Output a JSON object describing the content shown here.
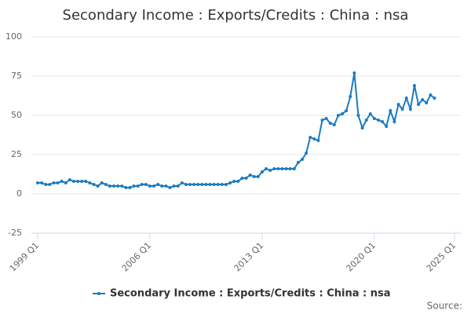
{
  "chart_data": {
    "type": "line",
    "title": "Secondary Income : Exports/Credits : China : nsa",
    "source": "Source:",
    "categories": [
      "1999 Q1",
      null,
      null,
      null,
      null,
      null,
      null,
      null,
      null,
      null,
      null,
      null,
      null,
      null,
      null,
      null,
      null,
      null,
      null,
      null,
      null,
      null,
      null,
      null,
      null,
      null,
      null,
      null,
      "2006 Q1",
      null,
      null,
      null,
      null,
      null,
      null,
      null,
      null,
      null,
      null,
      null,
      null,
      null,
      null,
      null,
      null,
      null,
      null,
      null,
      null,
      null,
      null,
      null,
      null,
      null,
      null,
      null,
      "2013 Q1",
      null,
      null,
      null,
      null,
      null,
      null,
      null,
      null,
      null,
      null,
      null,
      null,
      null,
      null,
      null,
      null,
      null,
      null,
      null,
      null,
      null,
      null,
      null,
      null,
      null,
      null,
      null,
      "2020 Q1",
      null,
      null,
      null,
      null,
      null,
      null,
      null,
      null,
      null,
      null,
      null,
      null,
      null,
      null,
      null,
      null,
      null,
      null,
      null,
      "2025 Q1"
    ],
    "series": [
      {
        "name": "Secondary Income : Exports/Credits : China : nsa",
        "color": "#1a7cc1",
        "values": [
          7,
          7,
          6,
          6,
          7,
          7,
          8,
          7,
          9,
          8,
          8,
          8,
          8,
          7,
          6,
          5,
          7,
          6,
          5,
          5,
          5,
          5,
          4,
          4,
          5,
          5,
          6,
          6,
          5,
          5,
          6,
          5,
          5,
          4,
          5,
          5,
          7,
          6,
          6,
          6,
          6,
          6,
          6,
          6,
          6,
          6,
          6,
          6,
          7,
          8,
          8,
          10,
          10,
          12,
          11,
          11,
          14,
          16,
          15,
          16,
          16,
          16,
          16,
          16,
          16,
          20,
          22,
          26,
          36,
          35,
          34,
          47,
          48,
          45,
          44,
          50,
          51,
          53,
          62,
          77,
          50,
          42,
          47,
          51,
          48,
          47,
          46,
          43,
          53,
          46,
          57,
          54,
          61,
          54,
          69,
          57,
          60,
          58,
          63,
          61,
          null,
          null,
          null,
          null,
          null
        ]
      }
    ],
    "ylim": [
      -25,
      100
    ],
    "yticks": [
      -25,
      0,
      25,
      50,
      75,
      100
    ],
    "grid": true,
    "legend": "bottom"
  }
}
